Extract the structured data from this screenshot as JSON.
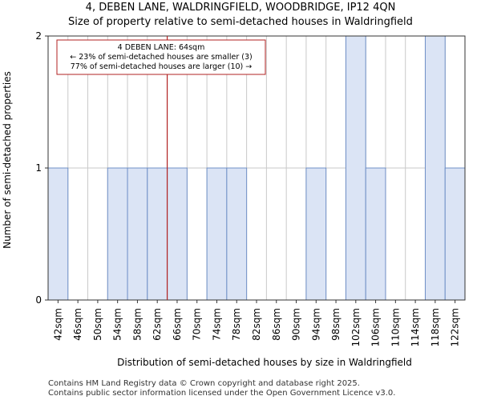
{
  "chart_data": {
    "type": "bar",
    "title": "4, DEBEN LANE, WALDRINGFIELD, WOODBRIDGE, IP12 4QN",
    "subtitle": "Size of property relative to semi-detached houses in Waldringfield",
    "xlabel": "Distribution of semi-detached houses by size in Waldringfield",
    "ylabel": "Number of semi-detached properties",
    "categories": [
      "42sqm",
      "46sqm",
      "50sqm",
      "54sqm",
      "58sqm",
      "62sqm",
      "66sqm",
      "70sqm",
      "74sqm",
      "78sqm",
      "82sqm",
      "86sqm",
      "90sqm",
      "94sqm",
      "98sqm",
      "102sqm",
      "106sqm",
      "110sqm",
      "114sqm",
      "118sqm",
      "122sqm"
    ],
    "values": [
      1,
      0,
      0,
      1,
      1,
      1,
      1,
      0,
      1,
      1,
      0,
      0,
      0,
      1,
      0,
      2,
      1,
      0,
      0,
      2,
      1
    ],
    "ylim": [
      0,
      2
    ],
    "yticks": [
      0,
      1,
      2
    ],
    "grid": true,
    "colors": {
      "bar_fill": "#dbe4f5",
      "bar_stroke": "#6f8fc6",
      "marker": "#b22222",
      "grid": "#c9c9c9"
    },
    "marker": {
      "x": 64,
      "label": "4 DEBEN LANE: 64sqm"
    },
    "annotation": [
      "4 DEBEN LANE: 64sqm",
      "← 23% of semi-detached houses are smaller (3)",
      "77% of semi-detached houses are larger (10) →"
    ]
  },
  "footer": {
    "line1": "Contains HM Land Registry data © Crown copyright and database right 2025.",
    "line2": "Contains public sector information licensed under the Open Government Licence v3.0."
  }
}
